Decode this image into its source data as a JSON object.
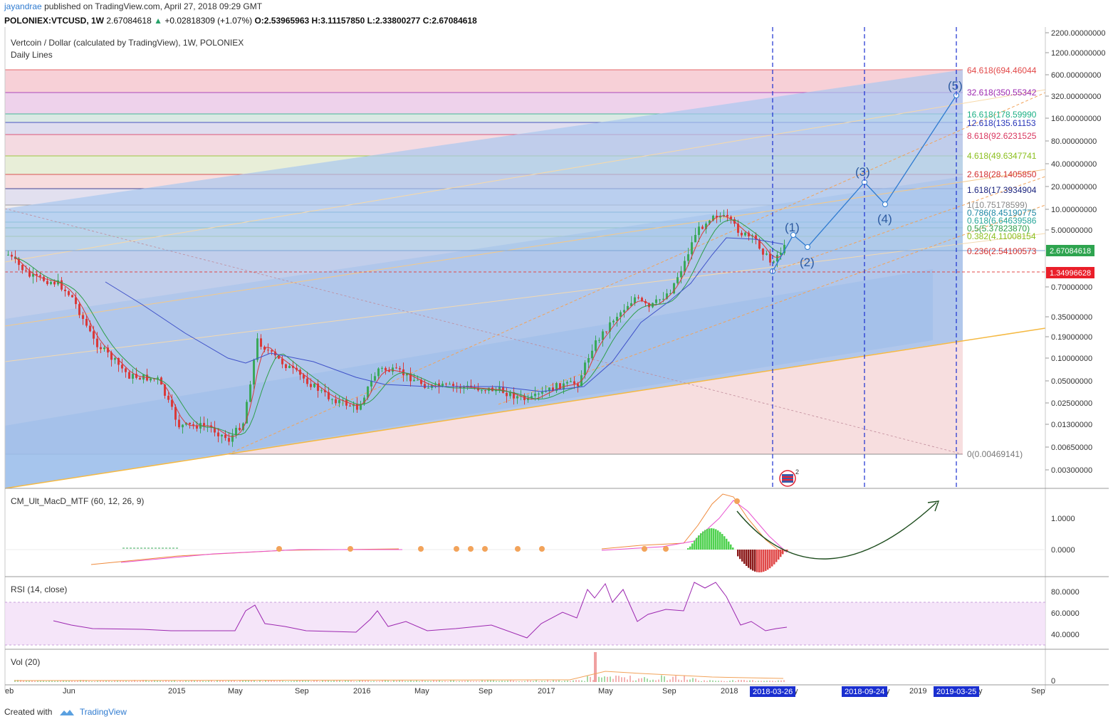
{
  "header": {
    "user": "jayandrae",
    "published": "published on TradingView.com, April 27, 2018 09:29 GMT"
  },
  "quote": {
    "symbol": "POLONIEX:VTCUSD, 1W",
    "last": "2.67084618",
    "change": "+0.02818309 (+1.07%)",
    "o": "O:2.53965963",
    "h": "H:3.11157850",
    "l": "L:2.33800277",
    "c": "C:2.67084618"
  },
  "chart": {
    "title": "Vertcoin / Dollar (calculated by TradingView), 1W, POLONIEX",
    "subtitle": "Daily Lines",
    "price_ticks": [
      "2200.00000000",
      "1200.00000000",
      "600.00000000",
      "320.00000000",
      "160.00000000",
      "80.00000000",
      "40.00000000",
      "20.00000000",
      "10.00000000",
      "5.00000000",
      "0.70000000",
      "0.35000000",
      "0.19000000",
      "0.10000000",
      "0.05000000",
      "0.02500000",
      "0.01300000",
      "0.00650000",
      "0.00300000"
    ],
    "last_price_label": "2.67084618",
    "hline_price_label": "1.34996628",
    "wave_labels": [
      "(1)",
      "(2)",
      "(3)",
      "(4)",
      "(5)"
    ],
    "fib_levels": [
      {
        "label": "64.618(694.46044",
        "color": "#e24848"
      },
      {
        "label": "32.618(350.55342",
        "color": "#9c27b0"
      },
      {
        "label": "16.618(178.59990",
        "color": "#1db085"
      },
      {
        "label": "12.618(135.61153",
        "color": "#2634b8"
      },
      {
        "label": "8.618(92.6231525",
        "color": "#d9365f"
      },
      {
        "label": "4.618(49.6347741",
        "color": "#8bbf1d"
      },
      {
        "label": "2.618(28.1405850",
        "color": "#d32f2f"
      },
      {
        "label": "1.618(17.3934904",
        "color": "#1a237e"
      },
      {
        "label": "1(10.75178599)",
        "color": "#888888"
      },
      {
        "label": "0.786(8.45190775",
        "color": "#1e88a5"
      },
      {
        "label": "0.618(6.64639586",
        "color": "#26a69a"
      },
      {
        "label": "0.5(5.37823870)",
        "color": "#2e9e4a"
      },
      {
        "label": "0.382(4.11008154",
        "color": "#8bbf1d"
      },
      {
        "label": "0.236(2.54100573",
        "color": "#d32f2f"
      },
      {
        "label": "0(0.00469141)",
        "color": "#777777"
      }
    ],
    "time_ticks": [
      "eb",
      "Jun",
      "2015",
      "May",
      "Sep",
      "2016",
      "May",
      "Sep",
      "2017",
      "May",
      "Sep",
      "2018",
      "y",
      "y",
      "2019",
      "y",
      "Sep"
    ],
    "date_markers": [
      "2018-03-26",
      "2018-09-24",
      "2019-03-25"
    ],
    "event_badge": "2"
  },
  "macd": {
    "title": "CM_Ult_MacD_MTF (60, 12, 26, 9)",
    "ticks": [
      "1.0000",
      "0.0000"
    ]
  },
  "rsi": {
    "title": "RSI (14, close)",
    "ticks": [
      "80.0000",
      "60.0000",
      "40.0000"
    ]
  },
  "volume": {
    "title": "Vol (20)",
    "ticks": [
      "0"
    ]
  },
  "footer": {
    "created_with": "Created with",
    "brand": "TradingView"
  },
  "colors": {
    "accent": "#2f7bd0",
    "up": "#26a269",
    "down": "#e04848",
    "wave": "#2f7bd0",
    "channel": "#f5b942"
  },
  "chart_data": {
    "type": "candlestick",
    "symbol": "VTCUSD",
    "scale": "log",
    "x": [
      "2014-07",
      "2014-10",
      "2015-01",
      "2015-04",
      "2015-07",
      "2015-10",
      "2016-01",
      "2016-04",
      "2016-07",
      "2016-10",
      "2017-01",
      "2017-04",
      "2017-07",
      "2017-10",
      "2018-01",
      "2018-03",
      "2018-04"
    ],
    "series": [
      {
        "name": "VTCUSD",
        "values": [
          0.9,
          0.35,
          0.08,
          0.02,
          0.1,
          0.06,
          0.03,
          0.04,
          0.035,
          0.03,
          0.025,
          0.15,
          0.5,
          3.0,
          8.0,
          1.5,
          2.67
        ]
      }
    ],
    "projection": {
      "labels": [
        "(1)",
        "(2)",
        "(3)",
        "(4)",
        "(5)"
      ],
      "values": [
        4.2,
        2.9,
        20.0,
        11.0,
        350.0
      ]
    },
    "ylim": [
      0.003,
      2200
    ]
  }
}
